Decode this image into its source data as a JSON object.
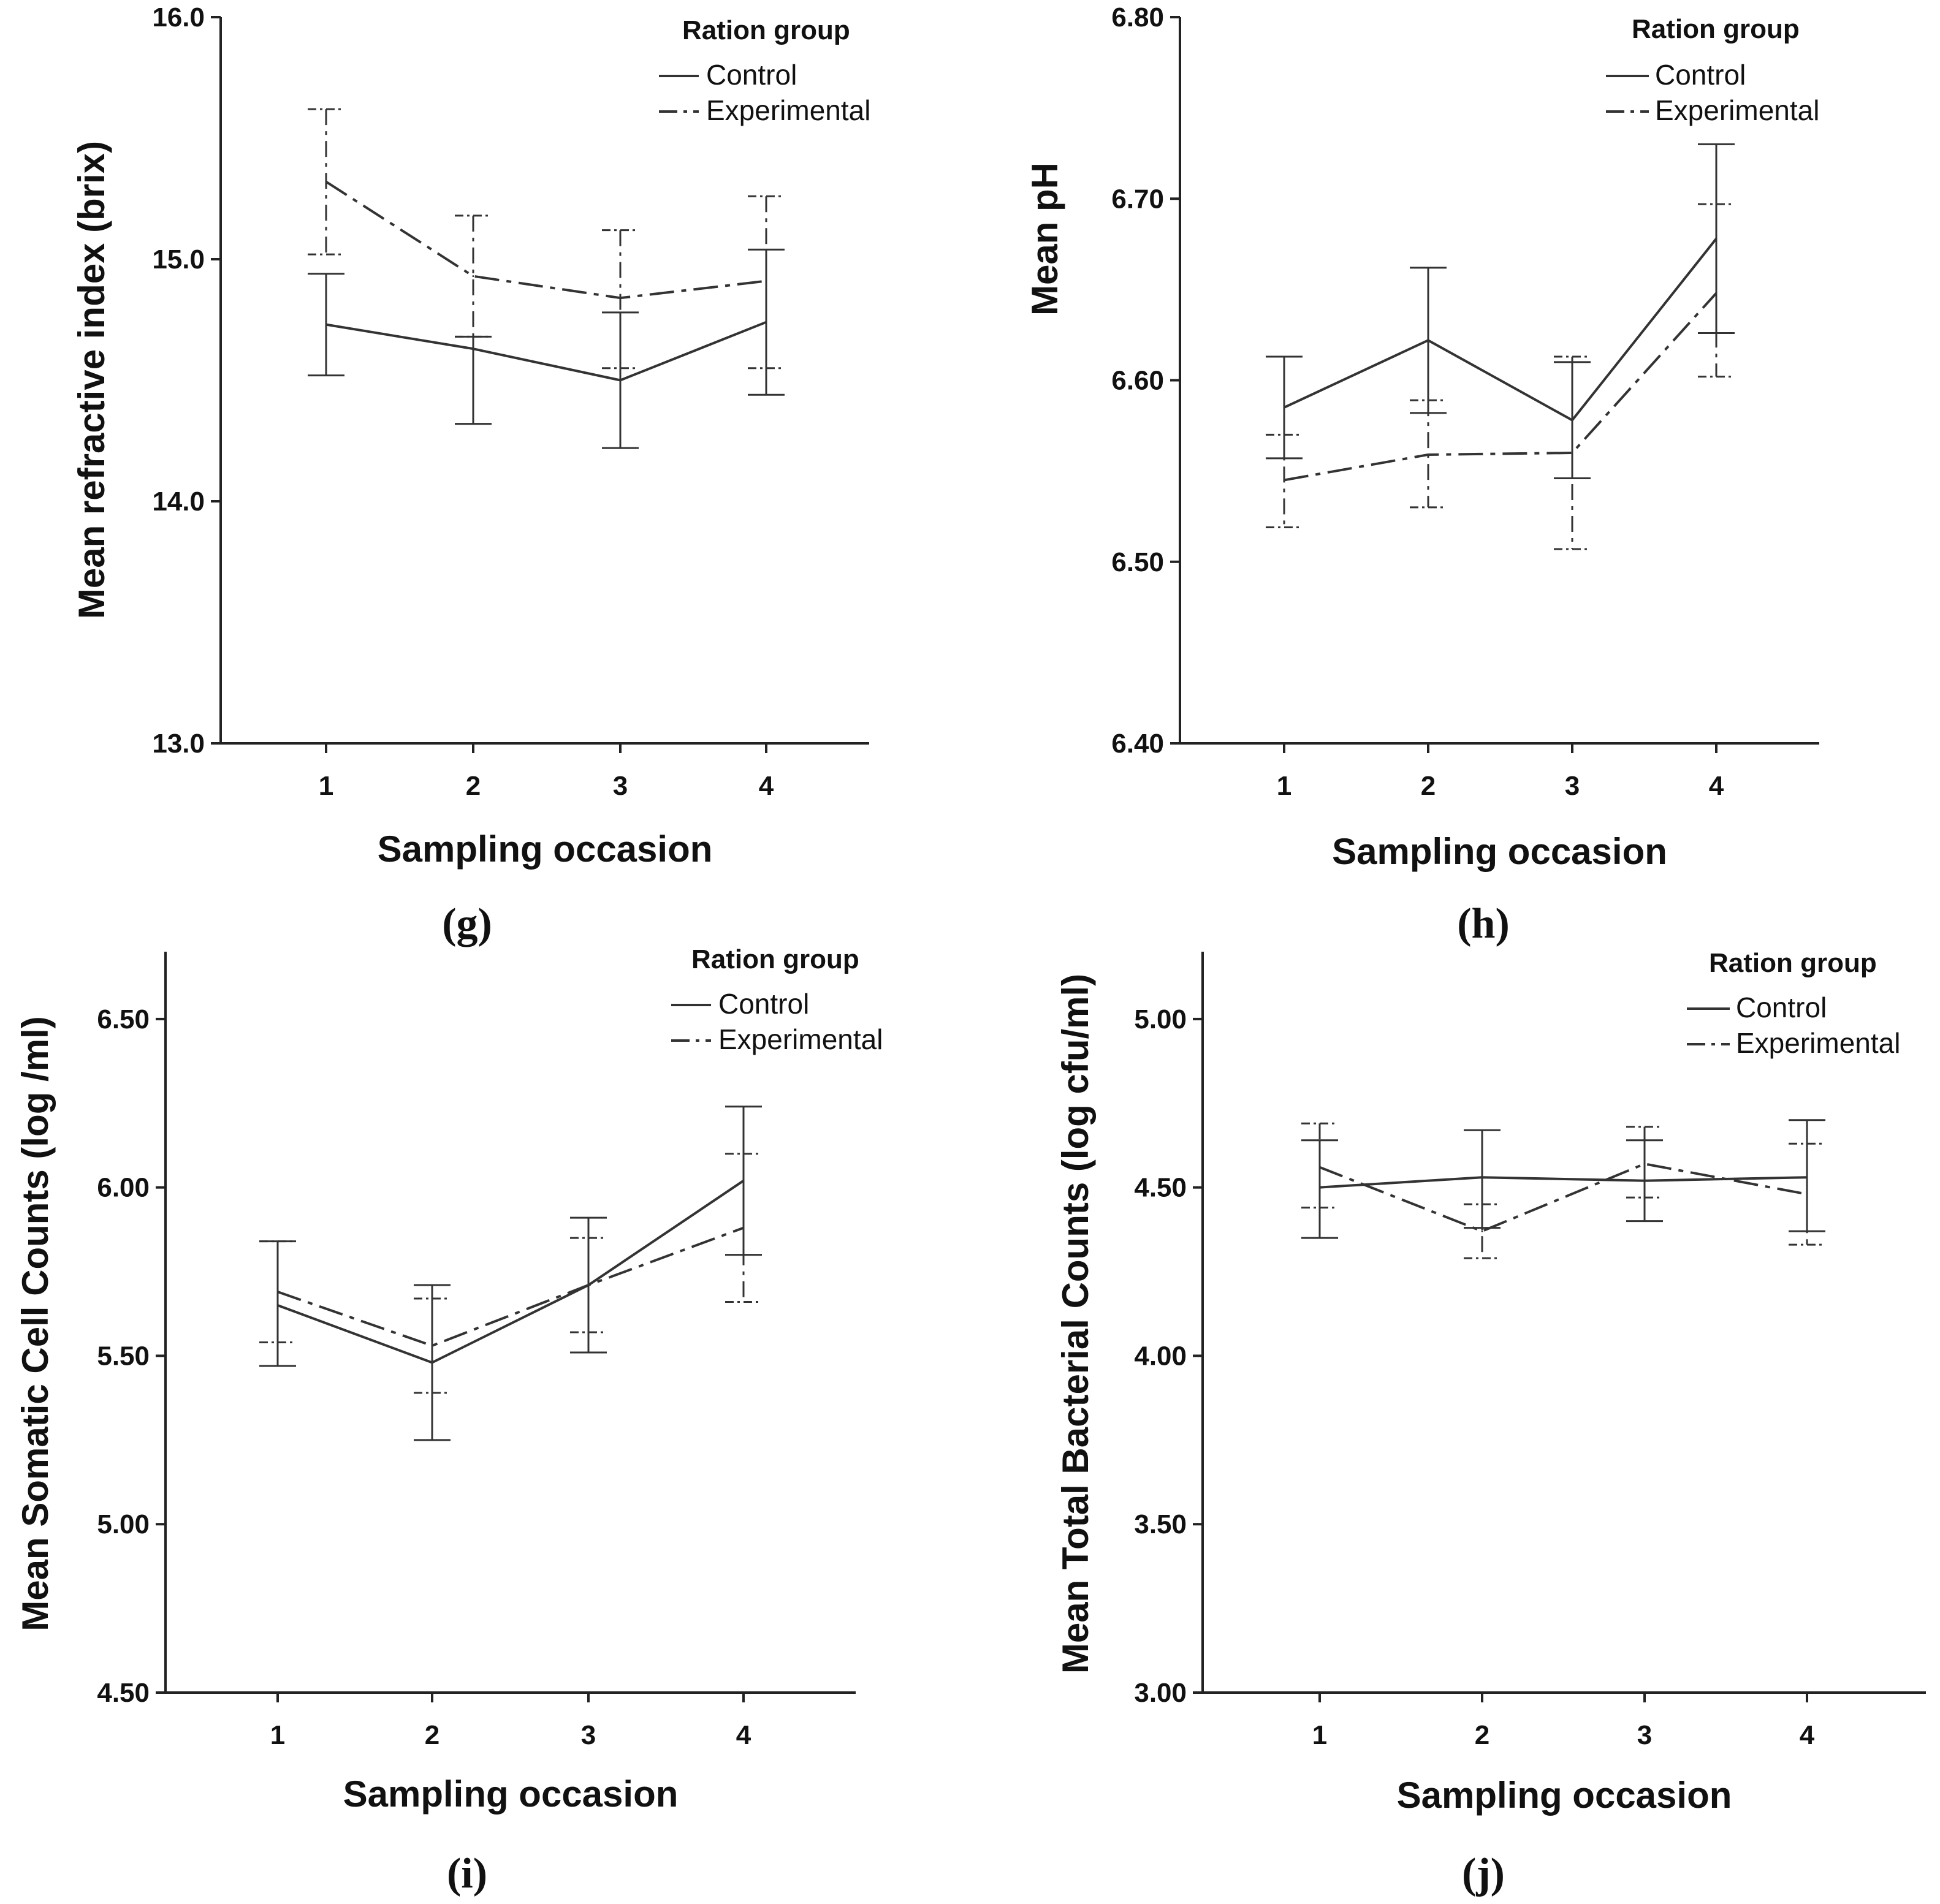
{
  "chart_data": [
    {
      "panel": "(g)",
      "type": "line",
      "title": "",
      "xlabel": "Sampling occasion",
      "ylabel": "Mean refractive index (brix)",
      "categories": [
        "1",
        "2",
        "3",
        "4"
      ],
      "ylim": [
        13.0,
        16.0
      ],
      "yticks": [
        "13.0",
        "14.0",
        "15.0",
        "16.0"
      ],
      "legend": {
        "title": "Ration group",
        "position": "top-right"
      },
      "series": [
        {
          "name": "Control",
          "style": "solid",
          "values": [
            14.73,
            14.63,
            14.5,
            14.74
          ],
          "lower": [
            14.52,
            14.32,
            14.22,
            14.44
          ],
          "upper": [
            14.94,
            14.68,
            14.78,
            15.04
          ]
        },
        {
          "name": "Experimental",
          "style": "dashdot",
          "values": [
            15.32,
            14.93,
            14.84,
            14.91
          ],
          "lower": [
            15.02,
            14.68,
            14.55,
            14.55
          ],
          "upper": [
            15.62,
            15.18,
            15.12,
            15.26
          ]
        }
      ]
    },
    {
      "panel": "(h)",
      "type": "line",
      "title": "",
      "xlabel": "Sampling occasion",
      "ylabel": "Mean pH",
      "categories": [
        "1",
        "2",
        "3",
        "4"
      ],
      "ylim": [
        6.4,
        6.8
      ],
      "yticks": [
        "6.40",
        "6.50",
        "6.60",
        "6.70",
        "6.80"
      ],
      "legend": {
        "title": "Ration group",
        "position": "top-right"
      },
      "series": [
        {
          "name": "Control",
          "style": "solid",
          "values": [
            6.585,
            6.622,
            6.578,
            6.678
          ],
          "lower": [
            6.557,
            6.582,
            6.546,
            6.626
          ],
          "upper": [
            6.613,
            6.662,
            6.61,
            6.73
          ]
        },
        {
          "name": "Experimental",
          "style": "dashdot",
          "values": [
            6.545,
            6.559,
            6.56,
            6.648
          ],
          "lower": [
            6.519,
            6.53,
            6.507,
            6.602
          ],
          "upper": [
            6.57,
            6.589,
            6.613,
            6.697
          ]
        }
      ]
    },
    {
      "panel": "(i)",
      "type": "line",
      "title": "",
      "xlabel": "Sampling occasion",
      "ylabel": "Mean Somatic Cell Counts (log /ml)",
      "categories": [
        "1",
        "2",
        "3",
        "4"
      ],
      "ylim": [
        4.5,
        6.7
      ],
      "yticks": [
        "4.50",
        "5.00",
        "5.50",
        "6.00",
        "6.50"
      ],
      "legend": {
        "title": "Ration group",
        "position": "top-right"
      },
      "series": [
        {
          "name": "Control",
          "style": "solid",
          "values": [
            5.65,
            5.48,
            5.71,
            6.02
          ],
          "lower": [
            5.47,
            5.25,
            5.51,
            5.8
          ],
          "upper": [
            5.84,
            5.71,
            5.91,
            6.24
          ]
        },
        {
          "name": "Experimental",
          "style": "dashdot",
          "values": [
            5.69,
            5.53,
            5.71,
            5.88
          ],
          "lower": [
            5.54,
            5.39,
            5.57,
            5.66
          ],
          "upper": [
            5.84,
            5.67,
            5.85,
            6.1
          ]
        }
      ]
    },
    {
      "panel": "(j)",
      "type": "line",
      "title": "",
      "xlabel": "Sampling occasion",
      "ylabel": "Mean Total Bacterial Counts (log cfu/ml)",
      "categories": [
        "1",
        "2",
        "3",
        "4"
      ],
      "ylim": [
        3.0,
        5.2
      ],
      "yticks": [
        "3.00",
        "3.50",
        "4.00",
        "4.50",
        "5.00"
      ],
      "legend": {
        "title": "Ration group",
        "position": "top-right"
      },
      "series": [
        {
          "name": "Control",
          "style": "solid",
          "values": [
            4.5,
            4.53,
            4.52,
            4.53
          ],
          "lower": [
            4.35,
            4.38,
            4.4,
            4.37
          ],
          "upper": [
            4.64,
            4.67,
            4.64,
            4.7
          ]
        },
        {
          "name": "Experimental",
          "style": "dashdot",
          "values": [
            4.56,
            4.37,
            4.57,
            4.48
          ],
          "lower": [
            4.44,
            4.29,
            4.47,
            4.33
          ],
          "upper": [
            4.69,
            4.45,
            4.68,
            4.63
          ]
        }
      ]
    }
  ]
}
